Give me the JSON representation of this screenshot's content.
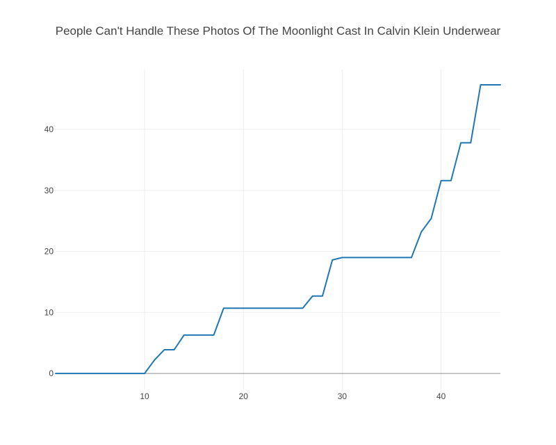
{
  "chart_data": {
    "type": "line",
    "title": "People Can't Handle These Photos Of The  Moonlight  Cast In Calvin Klein Underwear",
    "xlabel": "",
    "ylabel": "",
    "x": [
      1,
      2,
      3,
      4,
      5,
      6,
      7,
      8,
      9,
      10,
      11,
      12,
      13,
      14,
      15,
      16,
      17,
      18,
      19,
      20,
      21,
      22,
      23,
      24,
      25,
      26,
      27,
      28,
      29,
      30,
      31,
      32,
      33,
      34,
      35,
      36,
      37,
      38,
      39,
      40,
      41,
      42,
      43,
      44,
      45,
      46
    ],
    "series": [
      {
        "color": "#1f77b4",
        "values": [
          0,
          0,
          0,
          0,
          0,
          0,
          0,
          0,
          0,
          0,
          2.2,
          3.9,
          3.9,
          6.3,
          6.3,
          6.3,
          6.3,
          10.7,
          10.7,
          10.7,
          10.7,
          10.7,
          10.7,
          10.7,
          10.7,
          10.7,
          12.7,
          12.7,
          18.6,
          19.0,
          19.0,
          19.0,
          19.0,
          19.0,
          19.0,
          19.0,
          19.0,
          23.2,
          25.4,
          31.6,
          31.6,
          37.8,
          37.8,
          47.3,
          47.3,
          47.3
        ]
      }
    ],
    "xlim": [
      1,
      46
    ],
    "ylim": [
      -2.6,
      49.8
    ],
    "xticks": [
      10,
      20,
      30,
      40
    ],
    "yticks": [
      0,
      10,
      20,
      30,
      40
    ],
    "grid": true,
    "zeroline_color": "#444444",
    "legend": "none"
  }
}
